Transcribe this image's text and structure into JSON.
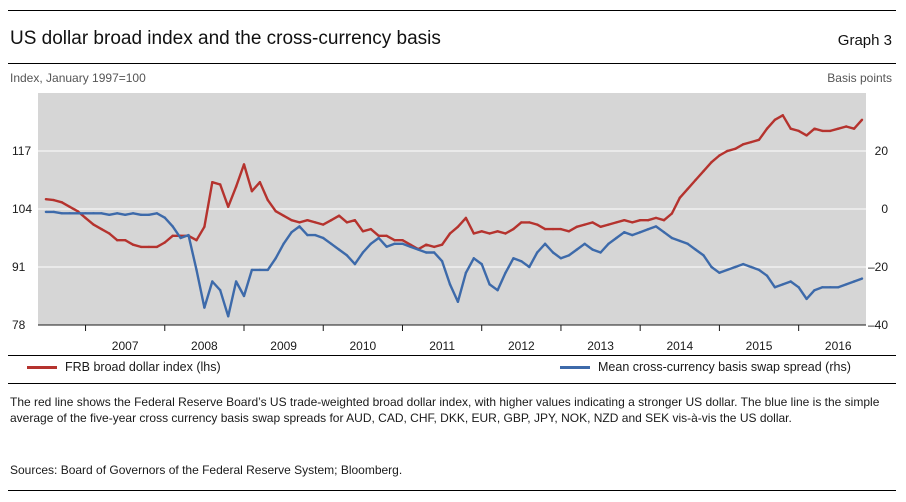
{
  "header": {
    "title": "US dollar broad index and the cross-currency basis",
    "graph_label": "Graph 3",
    "left_axis_title": "Index, January 1997=100",
    "right_axis_title": "Basis points"
  },
  "legend": {
    "red_label": "FRB broad dollar index (lhs)",
    "blue_label": "Mean cross-currency basis swap spread (rhs)"
  },
  "footnote": "The red line shows the Federal Reserve Board’s US trade-weighted broad dollar index, with higher values indicating a stronger US dollar. The blue line is the simple average of the five-year cross currency basis swap spreads for AUD, CAD, CHF, DKK, EUR, GBP, JPY, NOK, NZD and SEK vis-à-vis the US dollar.",
  "sources": "Sources: Board of Governors of the Federal Reserve System; Bloomberg.",
  "colors": {
    "red": "#b5332e",
    "blue": "#3d6aaa",
    "plot_bg": "#d6d6d6",
    "grid": "#ffffff"
  },
  "chart_data": {
    "type": "line",
    "x_unit": "year",
    "xlim": [
      2006.4,
      2016.85
    ],
    "x_tick_labels": [
      "2007",
      "2008",
      "2009",
      "2010",
      "2011",
      "2012",
      "2013",
      "2014",
      "2015",
      "2016"
    ],
    "left_axis": {
      "ylim": [
        78,
        130
      ],
      "ticks": [
        78,
        91,
        104,
        117
      ],
      "tick_labels": [
        "78",
        "91",
        "104",
        "117"
      ]
    },
    "right_axis": {
      "ylim": [
        -40,
        40
      ],
      "ticks": [
        -40,
        -20,
        0,
        20
      ],
      "tick_labels": [
        "–40",
        "–20",
        "0",
        "20"
      ]
    },
    "grid": true,
    "series": [
      {
        "name": "FRB broad dollar index (lhs)",
        "axis": "left",
        "color": "#b5332e",
        "x": [
          2006.5,
          2006.6,
          2006.7,
          2006.8,
          2006.9,
          2007.0,
          2007.1,
          2007.2,
          2007.3,
          2007.4,
          2007.5,
          2007.6,
          2007.7,
          2007.8,
          2007.9,
          2008.0,
          2008.1,
          2008.2,
          2008.3,
          2008.4,
          2008.5,
          2008.6,
          2008.7,
          2008.8,
          2008.9,
          2009.0,
          2009.1,
          2009.2,
          2009.3,
          2009.4,
          2009.5,
          2009.6,
          2009.7,
          2009.8,
          2009.9,
          2010.0,
          2010.1,
          2010.2,
          2010.3,
          2010.4,
          2010.5,
          2010.6,
          2010.7,
          2010.8,
          2010.9,
          2011.0,
          2011.1,
          2011.2,
          2011.3,
          2011.4,
          2011.5,
          2011.6,
          2011.7,
          2011.8,
          2011.9,
          2012.0,
          2012.1,
          2012.2,
          2012.3,
          2012.4,
          2012.5,
          2012.6,
          2012.7,
          2012.8,
          2012.9,
          2013.0,
          2013.1,
          2013.2,
          2013.3,
          2013.4,
          2013.5,
          2013.6,
          2013.7,
          2013.8,
          2013.9,
          2014.0,
          2014.1,
          2014.2,
          2014.3,
          2014.4,
          2014.5,
          2014.6,
          2014.7,
          2014.8,
          2014.9,
          2015.0,
          2015.1,
          2015.2,
          2015.3,
          2015.4,
          2015.5,
          2015.6,
          2015.7,
          2015.8,
          2015.9,
          2016.0,
          2016.1,
          2016.2,
          2016.3,
          2016.4,
          2016.5,
          2016.6,
          2016.7,
          2016.8
        ],
        "values": [
          106.2,
          106,
          105.5,
          104.5,
          103.5,
          102,
          100.5,
          99.5,
          98.5,
          97,
          97,
          96,
          95.5,
          95.5,
          95.5,
          96.5,
          98,
          98,
          98,
          97,
          100,
          110,
          109.5,
          104.5,
          109,
          114,
          108,
          110,
          106,
          103.5,
          102.5,
          101.5,
          101,
          101.5,
          101,
          100.5,
          101.5,
          102.5,
          101,
          101.5,
          99,
          99.5,
          98,
          98,
          97,
          97,
          96,
          95,
          96,
          95.5,
          96,
          98.5,
          100,
          102,
          98.5,
          99,
          98.5,
          99,
          98.5,
          99.5,
          101,
          101,
          100.5,
          99.5,
          99.5,
          99.5,
          99,
          100,
          100.5,
          101,
          100,
          100.5,
          101,
          101.5,
          101,
          101.5,
          101.5,
          102,
          101.5,
          103,
          106.5,
          108.5,
          110.5,
          112.5,
          114.5,
          116,
          117,
          117.5,
          118.5,
          119,
          119.5,
          122,
          124,
          125,
          122,
          121.5,
          120.5,
          122,
          121.5,
          121.5,
          122,
          122.5,
          122,
          124
        ]
      },
      {
        "name": "Mean cross-currency basis swap spread (rhs)",
        "axis": "right",
        "color": "#3d6aaa",
        "x": [
          2006.5,
          2006.6,
          2006.7,
          2006.8,
          2006.9,
          2007.0,
          2007.1,
          2007.2,
          2007.3,
          2007.4,
          2007.5,
          2007.6,
          2007.7,
          2007.8,
          2007.9,
          2008.0,
          2008.1,
          2008.2,
          2008.3,
          2008.4,
          2008.5,
          2008.6,
          2008.7,
          2008.8,
          2008.9,
          2009.0,
          2009.1,
          2009.2,
          2009.3,
          2009.4,
          2009.5,
          2009.6,
          2009.7,
          2009.8,
          2009.9,
          2010.0,
          2010.1,
          2010.2,
          2010.3,
          2010.4,
          2010.5,
          2010.6,
          2010.7,
          2010.8,
          2010.9,
          2011.0,
          2011.1,
          2011.2,
          2011.3,
          2011.4,
          2011.5,
          2011.6,
          2011.7,
          2011.8,
          2011.9,
          2012.0,
          2012.1,
          2012.2,
          2012.3,
          2012.4,
          2012.5,
          2012.6,
          2012.7,
          2012.8,
          2012.9,
          2013.0,
          2013.1,
          2013.2,
          2013.3,
          2013.4,
          2013.5,
          2013.6,
          2013.7,
          2013.8,
          2013.9,
          2014.0,
          2014.1,
          2014.2,
          2014.3,
          2014.4,
          2014.5,
          2014.6,
          2014.7,
          2014.8,
          2014.9,
          2015.0,
          2015.1,
          2015.2,
          2015.3,
          2015.4,
          2015.5,
          2015.6,
          2015.7,
          2015.8,
          2015.9,
          2016.0,
          2016.1,
          2016.2,
          2016.3,
          2016.4,
          2016.5,
          2016.6,
          2016.7,
          2016.8
        ],
        "values": [
          -1,
          -1,
          -1.5,
          -1.5,
          -1.5,
          -1.5,
          -1.5,
          -1.5,
          -2,
          -1.5,
          -2,
          -1.5,
          -2,
          -2,
          -1.5,
          -3,
          -6,
          -10,
          -9,
          -21,
          -34,
          -25,
          -28,
          -37,
          -25,
          -30,
          -21,
          -21,
          -21,
          -17,
          -12,
          -8,
          -6,
          -9,
          -9,
          -10,
          -12,
          -14,
          -16,
          -19,
          -15,
          -12,
          -10,
          -13,
          -12,
          -12,
          -13,
          -14,
          -15,
          -15,
          -18,
          -26,
          -32,
          -22,
          -17,
          -19,
          -26,
          -28,
          -22,
          -17,
          -18,
          -20,
          -15,
          -12,
          -15,
          -17,
          -16,
          -14,
          -12,
          -14,
          -15,
          -12,
          -10,
          -8,
          -9,
          -8,
          -7,
          -6,
          -8,
          -10,
          -11,
          -12,
          -14,
          -16,
          -20,
          -22,
          -21,
          -20,
          -19,
          -20,
          -21,
          -23,
          -27,
          -26,
          -25,
          -27,
          -31,
          -28,
          -27,
          -27,
          -27,
          -26,
          -25,
          -24
        ]
      }
    ]
  }
}
